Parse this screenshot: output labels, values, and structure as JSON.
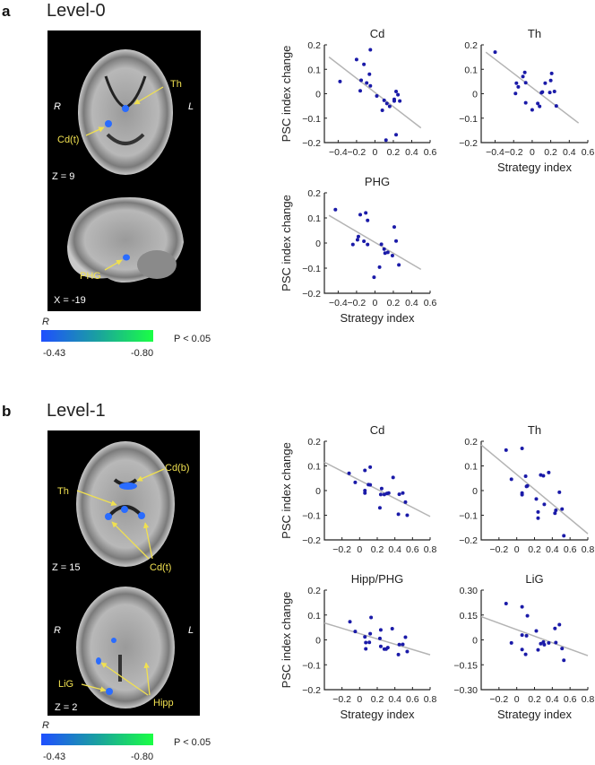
{
  "panels": [
    {
      "letter": "a",
      "level": "Level-0",
      "brain": {
        "side_right": "R",
        "side_left": "L",
        "slice1_label": "Z = 9",
        "slice2_label": "X = -19",
        "region_labels": [
          "Th",
          "Cd(t)",
          "PHG"
        ]
      },
      "colorbar": {
        "title": "R",
        "min_label": "-0.43",
        "max_label": "-0.80",
        "threshold": "P < 0.05",
        "colors": [
          "#1f4fff",
          "#1aa0a0",
          "#1aff44"
        ]
      }
    },
    {
      "letter": "b",
      "level": "Level-1",
      "brain": {
        "side_right": "R",
        "side_left": "L",
        "slice1_label": "Z = 15",
        "slice2_label": "Z = 2",
        "region_labels": [
          "Cd(b)",
          "Th",
          "Cd(t)",
          "LiG",
          "Hipp"
        ]
      },
      "colorbar": {
        "title": "R",
        "min_label": "-0.43",
        "max_label": "-0.80",
        "threshold": "P < 0.05",
        "colors": [
          "#1f4fff",
          "#1aa0a0",
          "#1aff44"
        ]
      }
    }
  ],
  "colors": {
    "points": "#1a1aa8",
    "fit_line": "#b4b4b4",
    "blob": "#2a6cff",
    "label": "#f0e050"
  },
  "chart_data": [
    {
      "type": "scatter",
      "panel": "a",
      "title": "Cd",
      "xlabel": "",
      "ylabel": "PSC index change",
      "xlim": [
        -0.55,
        0.6
      ],
      "ylim": [
        -0.2,
        0.2
      ],
      "xticks": [
        -0.4,
        -0.2,
        0,
        0.2,
        0.4,
        0.6
      ],
      "xtick_labels": [
        "-0.4",
        "-0.2",
        "0",
        "0.2",
        "0.4",
        "0.6"
      ],
      "yticks": [
        -0.2,
        -0.1,
        0,
        0.1,
        0.2
      ],
      "ytick_labels": [
        "-0.2",
        "-0.1",
        "0",
        "0.1",
        "0.2"
      ],
      "fit": [
        [
          -0.5,
          0.15
        ],
        [
          0.5,
          -0.14
        ]
      ],
      "points": [
        [
          -0.38,
          0.05
        ],
        [
          -0.2,
          0.14
        ],
        [
          -0.05,
          0.18
        ],
        [
          -0.12,
          0.12
        ],
        [
          -0.06,
          0.08
        ],
        [
          -0.15,
          0.055
        ],
        [
          -0.09,
          0.044
        ],
        [
          -0.05,
          0.032
        ],
        [
          -0.16,
          0.012
        ],
        [
          0.02,
          -0.009
        ],
        [
          0.1,
          -0.027
        ],
        [
          0.13,
          -0.04
        ],
        [
          0.16,
          -0.052
        ],
        [
          0.08,
          -0.068
        ],
        [
          0.23,
          0.009
        ],
        [
          0.25,
          -0.004
        ],
        [
          0.21,
          -0.023
        ],
        [
          0.21,
          -0.03
        ],
        [
          0.27,
          -0.03
        ],
        [
          0.23,
          -0.168
        ],
        [
          0.12,
          -0.19
        ]
      ]
    },
    {
      "type": "scatter",
      "panel": "a",
      "title": "Th",
      "xlabel": "Strategy index",
      "ylabel": "",
      "xlim": [
        -0.55,
        0.6
      ],
      "ylim": [
        -0.2,
        0.2
      ],
      "xticks": [
        -0.4,
        -0.2,
        0,
        0.2,
        0.4,
        0.6
      ],
      "xtick_labels": [
        "-0.4",
        "-0.2",
        "0",
        "0.2",
        "0.4",
        "0.6"
      ],
      "yticks": [
        -0.2,
        -0.1,
        0,
        0.1,
        0.2
      ],
      "ytick_labels": [
        "-0.2",
        "-0.1",
        "0",
        "0.1",
        "0.2"
      ],
      "fit": [
        [
          -0.5,
          0.17
        ],
        [
          0.5,
          -0.12
        ]
      ],
      "points": [
        [
          -0.4,
          0.17
        ],
        [
          -0.17,
          0.043
        ],
        [
          -0.15,
          0.028
        ],
        [
          -0.18,
          0.001
        ],
        [
          -0.1,
          0.07
        ],
        [
          -0.08,
          0.087
        ],
        [
          -0.07,
          0.045
        ],
        [
          -0.07,
          -0.037
        ],
        [
          0,
          -0.066
        ],
        [
          0.06,
          -0.04
        ],
        [
          0.08,
          -0.052
        ],
        [
          0.1,
          0.004
        ],
        [
          0.11,
          0.007
        ],
        [
          0.14,
          0.043
        ],
        [
          0.21,
          0.083
        ],
        [
          0.2,
          0.054
        ],
        [
          0.19,
          0.005
        ],
        [
          0.24,
          0.009
        ],
        [
          0.26,
          -0.05
        ]
      ]
    },
    {
      "type": "scatter",
      "panel": "a",
      "title": "PHG",
      "xlabel": "Strategy index",
      "ylabel": "PSC index change",
      "xlim": [
        -0.55,
        0.6
      ],
      "ylim": [
        -0.2,
        0.2
      ],
      "xticks": [
        -0.4,
        -0.2,
        0,
        0.2,
        0.4,
        0.6
      ],
      "xtick_labels": [
        "-0.4",
        "-0.2",
        "0",
        "0.2",
        "0.4",
        "0.6"
      ],
      "yticks": [
        -0.2,
        -0.1,
        0,
        0.1,
        0.2
      ],
      "ytick_labels": [
        "-0.2",
        "-0.1",
        "0",
        "0.1",
        "0.2"
      ],
      "fit": [
        [
          -0.5,
          0.11
        ],
        [
          0.5,
          -0.105
        ]
      ],
      "points": [
        [
          -0.43,
          0.133
        ],
        [
          -0.16,
          0.113
        ],
        [
          -0.1,
          0.12
        ],
        [
          -0.08,
          0.09
        ],
        [
          -0.18,
          0.026
        ],
        [
          -0.19,
          0.013
        ],
        [
          -0.24,
          -0.006
        ],
        [
          -0.12,
          0.007
        ],
        [
          -0.08,
          -0.006
        ],
        [
          0.07,
          -0.005
        ],
        [
          0.1,
          -0.024
        ],
        [
          0.11,
          -0.04
        ],
        [
          0.14,
          -0.037
        ],
        [
          0.19,
          -0.05
        ],
        [
          0.21,
          0.064
        ],
        [
          0.23,
          0.008
        ],
        [
          0.26,
          -0.087
        ],
        [
          0.05,
          -0.096
        ],
        [
          -0.01,
          -0.136
        ]
      ]
    },
    {
      "type": "scatter",
      "panel": "b",
      "title": "Cd",
      "xlabel": "",
      "ylabel": "PSC index change",
      "xlim": [
        -0.4,
        0.8
      ],
      "ylim": [
        -0.2,
        0.2
      ],
      "xticks": [
        -0.2,
        0,
        0.2,
        0.4,
        0.6,
        0.8
      ],
      "xtick_labels": [
        "-0.2",
        "0",
        "0.2",
        "0.4",
        "0.6",
        "0.8"
      ],
      "yticks": [
        -0.2,
        -0.1,
        0,
        0.1,
        0.2
      ],
      "ytick_labels": [
        "-0.2",
        "-0.1",
        "0",
        "0.1",
        "0.2"
      ],
      "fit": [
        [
          -0.4,
          0.115
        ],
        [
          0.8,
          -0.105
        ]
      ],
      "points": [
        [
          -0.12,
          0.07
        ],
        [
          -0.05,
          0.033
        ],
        [
          0.06,
          0.082
        ],
        [
          0.12,
          0.095
        ],
        [
          0.06,
          0
        ],
        [
          0.06,
          -0.01
        ],
        [
          0.1,
          0.024
        ],
        [
          0.12,
          0.023
        ],
        [
          0.25,
          0.008
        ],
        [
          0.24,
          -0.016
        ],
        [
          0.28,
          -0.016
        ],
        [
          0.31,
          -0.012
        ],
        [
          0.33,
          -0.01
        ],
        [
          0.38,
          0.053
        ],
        [
          0.23,
          -0.07
        ],
        [
          0.45,
          -0.015
        ],
        [
          0.49,
          -0.01
        ],
        [
          0.52,
          -0.047
        ],
        [
          0.44,
          -0.096
        ],
        [
          0.54,
          -0.1
        ]
      ]
    },
    {
      "type": "scatter",
      "panel": "b",
      "title": "Th",
      "xlabel": "",
      "ylabel": "",
      "xlim": [
        -0.4,
        0.8
      ],
      "ylim": [
        -0.2,
        0.2
      ],
      "xticks": [
        -0.2,
        0,
        0.2,
        0.4,
        0.6,
        0.8
      ],
      "xtick_labels": [
        "-0.2",
        "0",
        "0.2",
        "0.4",
        "0.6",
        "0.8"
      ],
      "yticks": [
        -0.2,
        -0.1,
        0,
        0.1,
        0.2
      ],
      "ytick_labels": [
        "-0.2",
        "-0.1",
        "0",
        "0.1",
        "0.2"
      ],
      "fit": [
        [
          -0.4,
          0.185
        ],
        [
          0.8,
          -0.175
        ]
      ],
      "points": [
        [
          -0.12,
          0.164
        ],
        [
          -0.06,
          0.046
        ],
        [
          0.06,
          0.171
        ],
        [
          0.06,
          -0.01
        ],
        [
          0.06,
          -0.017
        ],
        [
          0.1,
          0.058
        ],
        [
          0.11,
          0.017
        ],
        [
          0.12,
          0.019
        ],
        [
          0.22,
          -0.034
        ],
        [
          0.24,
          -0.087
        ],
        [
          0.24,
          -0.112
        ],
        [
          0.27,
          0.063
        ],
        [
          0.3,
          0.06
        ],
        [
          0.31,
          -0.056
        ],
        [
          0.36,
          0.073
        ],
        [
          0.43,
          -0.092
        ],
        [
          0.44,
          -0.08
        ],
        [
          0.48,
          -0.007
        ],
        [
          0.51,
          -0.075
        ],
        [
          0.53,
          -0.183
        ]
      ]
    },
    {
      "type": "scatter",
      "panel": "b",
      "title": "Hipp/PHG",
      "xlabel": "Strategy index",
      "ylabel": "PSC index change",
      "xlim": [
        -0.4,
        0.8
      ],
      "ylim": [
        -0.2,
        0.2
      ],
      "xticks": [
        -0.2,
        0,
        0.2,
        0.4,
        0.6,
        0.8
      ],
      "xtick_labels": [
        "-0.2",
        "0",
        "0.2",
        "0.4",
        "0.6",
        "0.8"
      ],
      "yticks": [
        -0.2,
        -0.1,
        0,
        0.1,
        0.2
      ],
      "ytick_labels": [
        "-0.2",
        "-0.1",
        "0",
        "0.1",
        "0.2"
      ],
      "fit": [
        [
          -0.4,
          0.068
        ],
        [
          0.8,
          -0.06
        ]
      ],
      "points": [
        [
          -0.11,
          0.073
        ],
        [
          -0.05,
          0.034
        ],
        [
          0.06,
          0.012
        ],
        [
          0.07,
          -0.011
        ],
        [
          0.07,
          -0.036
        ],
        [
          0.11,
          -0.01
        ],
        [
          0.12,
          0.025
        ],
        [
          0.13,
          0.09
        ],
        [
          0.23,
          0.006
        ],
        [
          0.24,
          0.04
        ],
        [
          0.24,
          -0.026
        ],
        [
          0.28,
          -0.037
        ],
        [
          0.3,
          -0.037
        ],
        [
          0.32,
          -0.031
        ],
        [
          0.37,
          0.045
        ],
        [
          0.44,
          -0.059
        ],
        [
          0.45,
          -0.019
        ],
        [
          0.49,
          -0.018
        ],
        [
          0.52,
          0.011
        ],
        [
          0.54,
          -0.047
        ]
      ]
    },
    {
      "type": "scatter",
      "panel": "b",
      "title": "LiG",
      "xlabel": "Strategy index",
      "ylabel": "",
      "xlim": [
        -0.4,
        0.8
      ],
      "ylim": [
        -0.3,
        0.3
      ],
      "xticks": [
        -0.2,
        0,
        0.2,
        0.4,
        0.6,
        0.8
      ],
      "xtick_labels": [
        "-0.2",
        "0",
        "0.2",
        "0.4",
        "0.6",
        "0.8"
      ],
      "yticks": [
        -0.3,
        -0.15,
        0,
        0.15,
        0.3
      ],
      "ytick_labels": [
        "-0.30",
        "-0.15",
        "0",
        "0.15",
        "0.30"
      ],
      "fit": [
        [
          -0.4,
          0.14
        ],
        [
          0.8,
          -0.095
        ]
      ],
      "points": [
        [
          -0.12,
          0.219
        ],
        [
          -0.06,
          -0.018
        ],
        [
          0.06,
          0.199
        ],
        [
          0.06,
          0.029
        ],
        [
          0.06,
          -0.058
        ],
        [
          0.1,
          -0.087
        ],
        [
          0.11,
          0.025
        ],
        [
          0.12,
          0.145
        ],
        [
          0.22,
          0.054
        ],
        [
          0.24,
          -0.06
        ],
        [
          0.27,
          -0.023
        ],
        [
          0.3,
          -0.013
        ],
        [
          0.31,
          -0.029
        ],
        [
          0.36,
          -0.018
        ],
        [
          0.43,
          0.069
        ],
        [
          0.44,
          -0.016
        ],
        [
          0.48,
          0.092
        ],
        [
          0.51,
          -0.052
        ],
        [
          0.53,
          -0.123
        ]
      ]
    }
  ]
}
